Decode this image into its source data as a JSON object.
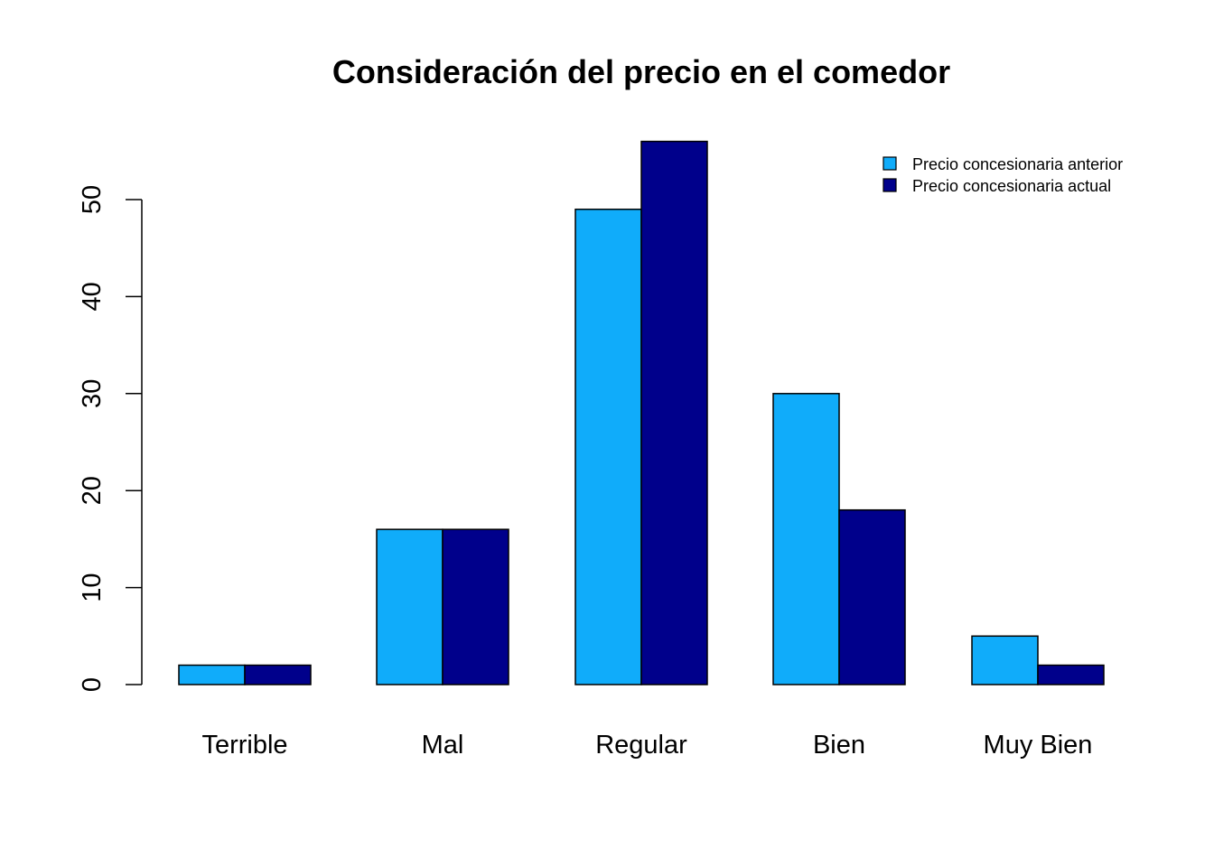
{
  "chart_data": {
    "type": "bar",
    "title": "Consideración del precio en el comedor",
    "xlabel": "",
    "ylabel": "",
    "categories": [
      "Terrible",
      "Mal",
      "Regular",
      "Bien",
      "Muy Bien"
    ],
    "series": [
      {
        "name": "Precio concesionaria anterior",
        "color": "#10ACFA",
        "values": [
          2,
          16,
          49,
          30,
          5
        ]
      },
      {
        "name": "Precio concesionaria actual",
        "color": "#00008B",
        "values": [
          2,
          16,
          56,
          18,
          2
        ]
      }
    ],
    "yticks": [
      0,
      10,
      20,
      30,
      40,
      50
    ],
    "ylim": [
      0,
      56
    ],
    "grid": false,
    "legend_position": "top-right"
  }
}
